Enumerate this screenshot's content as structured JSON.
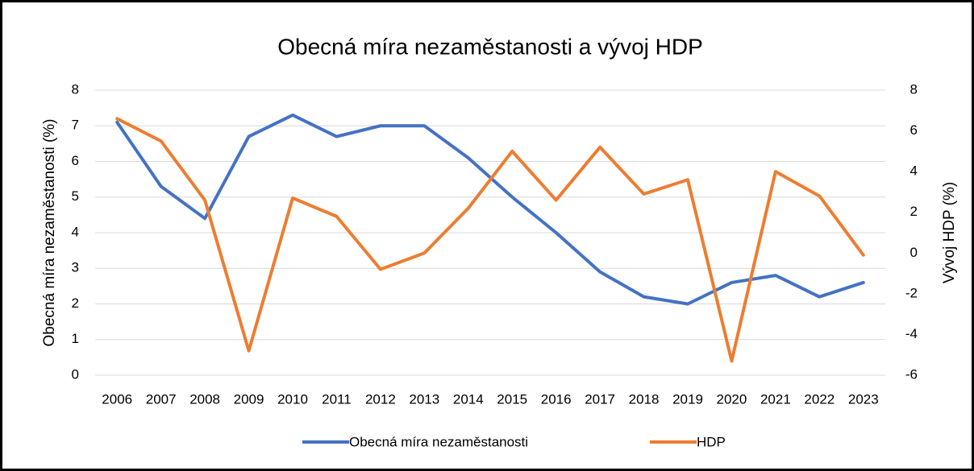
{
  "chart_data": {
    "type": "line",
    "title": "Obecná míra nezaměstanosti a vývoj HDP",
    "y_label": "Obecná míra nezaměstanosti (%)",
    "y2_label": "Vývoj HDP (%)",
    "categories": [
      "2006",
      "2007",
      "2008",
      "2009",
      "2010",
      "2011",
      "2012",
      "2013",
      "2014",
      "2015",
      "2016",
      "2017",
      "2018",
      "2019",
      "2020",
      "2021",
      "2022",
      "2023"
    ],
    "series": [
      {
        "name": "Obecná míra nezaměstanosti",
        "color": "#4472c4",
        "values": [
          7.1,
          5.3,
          4.4,
          6.7,
          7.3,
          6.7,
          7.0,
          7.0,
          6.1,
          5.0,
          4.0,
          2.9,
          2.2,
          2.0,
          2.6,
          2.8,
          2.2,
          2.6
        ]
      },
      {
        "name": "HDP",
        "color": "#ed7d31",
        "axis": "y2",
        "values": [
          6.6,
          5.5,
          2.6,
          -4.8,
          2.7,
          1.8,
          -0.8,
          0.0,
          2.2,
          5.0,
          2.6,
          5.2,
          2.9,
          3.6,
          -5.3,
          4.0,
          2.8,
          -0.1
        ]
      }
    ],
    "ylim": [
      0,
      8
    ],
    "yticks": [
      0,
      1,
      2,
      3,
      4,
      5,
      6,
      7,
      8
    ],
    "y2lim": [
      -6,
      8
    ],
    "y2ticks": [
      -6,
      -4,
      -2,
      0,
      2,
      4,
      6,
      8
    ],
    "grid": true,
    "legend": "bottom"
  }
}
